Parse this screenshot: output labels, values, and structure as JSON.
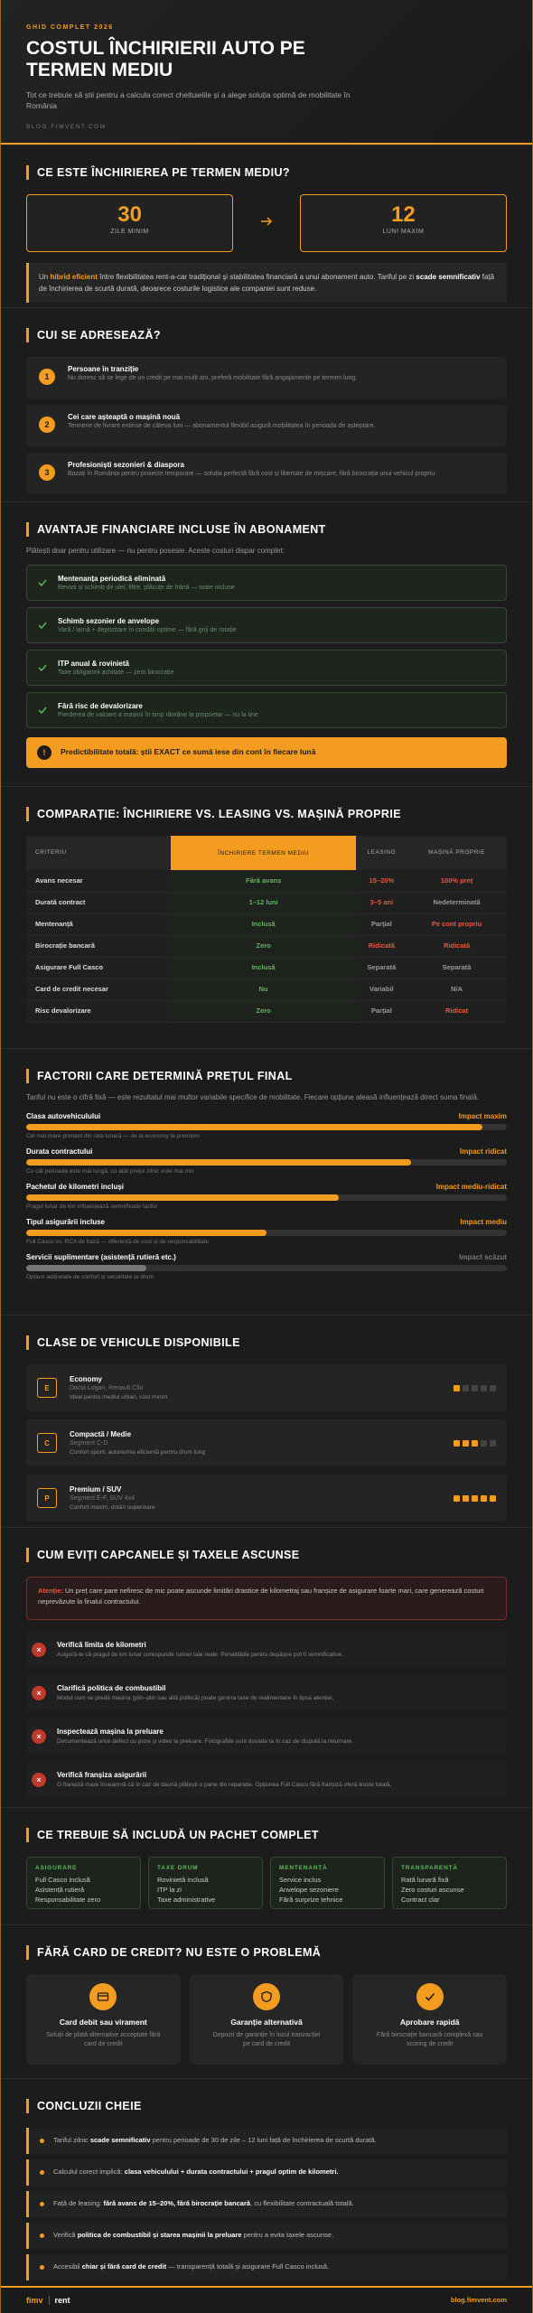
{
  "header": {
    "label": "GHID COMPLET 2026",
    "title": "COSTUL ÎNCHIRIERII AUTO PE TERMEN MEDIU",
    "subtitle": "Tot ce trebuie să știi pentru a calcula corect cheltuielile și a alege soluția optimă de mobilitate în România",
    "site": "BLOG.FIMVENT.COM"
  },
  "what": {
    "title": "CE ESTE ÎNCHIRIEREA PE TERMEN MEDIU?",
    "stats": [
      {
        "value": 30,
        "label": "ZILE MINIM"
      },
      {
        "value": 12,
        "label": "LUNI MAXIM"
      }
    ],
    "info": [
      "Un ",
      "hibrid eficient",
      " între flexibilitatea rent-a-car tradițional și stabilitatea financiară a unui abonament auto. Tariful pe zi ",
      "scade semnificativ",
      " față de închirierea de scurtă durată, deoarece costurile logistice ale companiei sunt reduse."
    ]
  },
  "audience": {
    "title": "CUI SE ADRESEAZĂ?",
    "items": [
      {
        "number": 1,
        "title": "Persoane în tranziție",
        "text": "Nu doresc să se lege de un credit pe mai mulți ani, preferă mobilitate fără angajamente pe termen lung."
      },
      {
        "number": 2,
        "title": "Cei care așteaptă o mașină nouă",
        "text": "Termene de livrare extinse de câteva luni — abonamentul flexibil asigură mobilitatea în perioada de așteptare."
      },
      {
        "number": 3,
        "title": "Profesioniști sezonieri & diaspora",
        "text": "Bazați în România pentru proiecte temporare — soluția perfectă fără cost și libertate de mișcare, fără birocrația unui vehicul propriu."
      }
    ]
  },
  "benefits": {
    "title": "AVANTAJE FINANCIARE INCLUSE ÎN ABONAMENT",
    "intro": "Plătești doar pentru utilizare — nu pentru posesie. Aceste costuri dispar complet:",
    "items": [
      {
        "title": "Mentenanța periodică eliminată",
        "text": "Revizii și schimb de ulei, filtre, plăcuțe de frână — toate incluse"
      },
      {
        "title": "Schimb sezonier de anvelope",
        "text": "Vară / iarnă + depozitare în condiții optime — fără griji de rotație"
      },
      {
        "title": "ITP anual & rovinietă",
        "text": "Taxe obligatorii achitate — zero birocrație"
      },
      {
        "title": "Fără risc de devalorizare",
        "text": "Pierderea de valoare a mașinii în timp rămâne la proprietar — nu la tine"
      }
    ],
    "callout": "Predictibilitate totală: știi EXACT ce sumă iese din cont în fiecare lună"
  },
  "comparison": {
    "title": "COMPARAȚIE: ÎNCHIRIERE VS. LEASING VS. MAȘINĂ PROPRIE",
    "columns": [
      "CRITERIU",
      "ÎNCHIRIERE TERMEN MEDIU",
      "LEASING",
      "MAȘINĂ PROPRIE"
    ],
    "rows": [
      {
        "cells": [
          "Avans necesar",
          "Fără avans",
          "15–20%",
          "100% preț"
        ],
        "tones": [
          "good",
          "bad",
          "bad"
        ]
      },
      {
        "cells": [
          "Durată contract",
          "1–12 luni",
          "3–5 ani",
          "Nedeterminată"
        ],
        "tones": [
          "good",
          "bad",
          "neutral"
        ]
      },
      {
        "cells": [
          "Mentenanță",
          "Inclusă",
          "Parțial",
          "Pe cont propriu"
        ],
        "tones": [
          "good",
          "neutral",
          "bad"
        ]
      },
      {
        "cells": [
          "Birocrație bancară",
          "Zero",
          "Ridicată",
          "Ridicată"
        ],
        "tones": [
          "good",
          "bad",
          "bad"
        ]
      },
      {
        "cells": [
          "Asigurare Full Casco",
          "Inclusă",
          "Separată",
          "Separată"
        ],
        "tones": [
          "good",
          "neutral",
          "neutral"
        ]
      },
      {
        "cells": [
          "Card de credit necesar",
          "Nu",
          "Variabil",
          "N/A"
        ],
        "tones": [
          "good",
          "neutral",
          "neutral"
        ]
      },
      {
        "cells": [
          "Risc devalorizare",
          "Zero",
          "Parțial",
          "Ridicat"
        ],
        "tones": [
          "good",
          "neutral",
          "bad"
        ]
      }
    ]
  },
  "factors": {
    "title": "FACTORII CARE DETERMINĂ PREȚUL FINAL",
    "intro": "Tariful nu este o cifră fixă — este rezultatul mai multor variabile specifice de mobilitate. Fiecare opțiune aleasă influențează direct suma finală.",
    "items": [
      {
        "name": "Clasa autovehiculului",
        "impact": "Impact maxim",
        "level": 95,
        "color": "#f39c1f",
        "note": "Cel mai mare primant din rata lunară — de la economy la premium"
      },
      {
        "name": "Durata contractului",
        "impact": "Impact ridicat",
        "level": 80,
        "color": "#f39c1f",
        "note": "Cu cât perioada este mai lungă, cu atât prețul zilnic este mai mic"
      },
      {
        "name": "Pachetul de kilometri incluși",
        "impact": "Impact mediu-ridicat",
        "level": 65,
        "color": "#f39c1f",
        "note": "Pragul lunar de km influențează semnificativ tariful"
      },
      {
        "name": "Tipul asigurării incluse",
        "impact": "Impact mediu",
        "level": 50,
        "color": "#f39c1f",
        "note": "Full Casco vs. RCA de bază — diferență de cost și de responsabilitate"
      },
      {
        "name": "Servicii suplimentare (asistență rutieră etc.)",
        "impact": "Impact scăzut",
        "level": 25,
        "color": "#777777",
        "note": "Opțiuni adiționale de confort și securitate la drum"
      }
    ]
  },
  "vehicles": {
    "title": "CLASE DE VEHICULE DISPONIBILE",
    "items": [
      {
        "letter": "E",
        "name": "Economy",
        "segment": "Dacia Logan, Renault Clio",
        "text": "Ideal pentru mediul urban, cost minim",
        "level": 1
      },
      {
        "letter": "C",
        "name": "Compactă / Medie",
        "segment": "Segment C-D",
        "text": "Confort sporit, autonomie eficientă pentru drum lung",
        "level": 3
      },
      {
        "letter": "P",
        "name": "Premium / SUV",
        "segment": "Segment E-F, SUV 4x4",
        "text": "Confort maxim, dotări superioare",
        "level": 5
      }
    ]
  },
  "traps": {
    "title": "CUM EVIȚI CAPCANELE ȘI TAXELE ASCUNSE",
    "alert_label": "Atenție:",
    "alert": "Un preț care pare nefiresc de mic poate ascunde limitări drastice de kilometraj sau franșize de asigurare foarte mari, care generează costuri neprevăzute la finalul contractului.",
    "items": [
      {
        "title": "Verifică limita de kilometri",
        "text": "Asigură-te că pragul de km lunar corespunde rutinei tale reale. Penalitățile pentru depășire pot fi semnificative."
      },
      {
        "title": "Clarifică politica de combustibil",
        "text": "Modul cum se predă mașina (plin–plin sau altă politică) poate genera taxe de realimentare în lipsa atenției."
      },
      {
        "title": "Inspectează mașina la preluare",
        "text": "Documentează orice defect cu poze și video la preluare. Fotografiile sunt dovada ta în caz de dispută la returnare."
      },
      {
        "title": "Verifică franșiza asigurării",
        "text": "O franșiză mare înseamnă că în caz de daună plătești o parte din reparație. Opțiunea Full Casco fără franșiză oferă liniște totală."
      }
    ]
  },
  "package": {
    "title": "CE TREBUIE SĂ INCLUDĂ UN PACHET COMPLET",
    "columns": [
      {
        "name": "ASIGURARE",
        "items": [
          "Full Casco inclusă",
          "Asistență rutieră",
          "Responsabilitate zero"
        ]
      },
      {
        "name": "TAXE DRUM",
        "items": [
          "Rovinietă inclusă",
          "ITP la zi",
          "Taxe administrative"
        ]
      },
      {
        "name": "MENTENANȚĂ",
        "items": [
          "Service inclus",
          "Anvelope sezoniere",
          "Fără surprize tehnice"
        ]
      },
      {
        "name": "TRANSPARENȚĂ",
        "items": [
          "Rată lunară fixă",
          "Zero costuri ascunse",
          "Contract clar"
        ]
      }
    ]
  },
  "nocard": {
    "title": "FĂRĂ CARD DE CREDIT? NU ESTE O PROBLEMĂ",
    "items": [
      {
        "title": "Card debit sau virament",
        "text": "Soluții de plată alternative acceptate fără card de credit"
      },
      {
        "title": "Garanție alternativă",
        "text": "Depozit de garanție în locul tranzacției pe card de credit"
      },
      {
        "title": "Aprobare rapidă",
        "text": "Fără birocrație bancară complexă sau scoring de credit"
      }
    ]
  },
  "conclusions": {
    "title": "CONCLUZII CHEIE",
    "items": [
      [
        "Tariful zilnic ",
        "scade semnificativ",
        " pentru perioade de 30 de zile – 12 luni față de închirierea de scurtă durată."
      ],
      [
        "Calculul corect implică: ",
        "clasa vehiculului + durata contractului + pragul optim de kilometri."
      ],
      [
        "Față de leasing: ",
        "fără avans de 15–20%, fără birocrație bancară",
        ", cu flexibilitate contractuală totală."
      ],
      [
        "Verifică ",
        "politica de combustibil și starea mașinii la preluare",
        " pentru a evita taxele ascunse."
      ],
      [
        "Accesibil ",
        "chiar și fără card de credit",
        " — transparență totală și asigurare Full Casco inclusă."
      ]
    ]
  },
  "footer": {
    "brand": "fimv",
    "brand_suffix": "rent",
    "site": "blog.fimvent.com"
  }
}
